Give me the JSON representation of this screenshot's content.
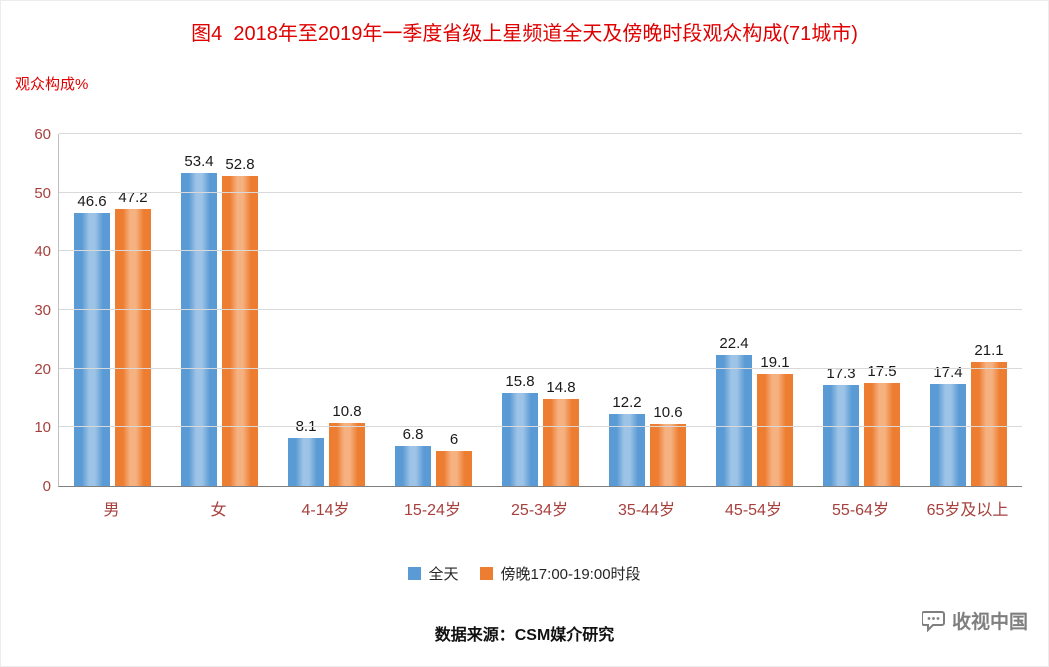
{
  "title": "图4  2018年至2019年一季度省级上星频道全天及傍晚时段观众构成(71城市)",
  "ylabel": "观众构成%",
  "footer": "数据来源：CSM媒介研究",
  "watermark": "收视中国",
  "colors": {
    "series1": "#5B9BD5",
    "series1_light": "#9DC3E6",
    "series2": "#ED7D31",
    "series2_light": "#F6B181",
    "title_text": "#E00000",
    "axis_text": "#A6403D",
    "gridline": "#D9D9D9"
  },
  "chart_data": {
    "type": "bar",
    "title": "图4 2018年至2019年一季度省级上星频道全天及傍晚时段观众构成(71城市)",
    "xlabel": "",
    "ylabel": "观众构成%",
    "categories": [
      "男",
      "女",
      "4-14岁",
      "15-24岁",
      "25-34岁",
      "35-44岁",
      "45-54岁",
      "55-64岁",
      "65岁及以上"
    ],
    "series": [
      {
        "name": "全天",
        "color": "#5B9BD5",
        "values": [
          46.6,
          53.4,
          8.1,
          6.8,
          15.8,
          12.2,
          22.4,
          17.3,
          17.4
        ]
      },
      {
        "name": "傍晚17:00-19:00时段",
        "color": "#ED7D31",
        "values": [
          47.2,
          52.8,
          10.8,
          6,
          14.8,
          10.6,
          19.1,
          17.5,
          21.1
        ]
      }
    ],
    "ylim": [
      0,
      60
    ],
    "yticks": [
      0,
      10,
      20,
      30,
      40,
      50,
      60
    ],
    "grid": true,
    "legend_position": "bottom"
  }
}
